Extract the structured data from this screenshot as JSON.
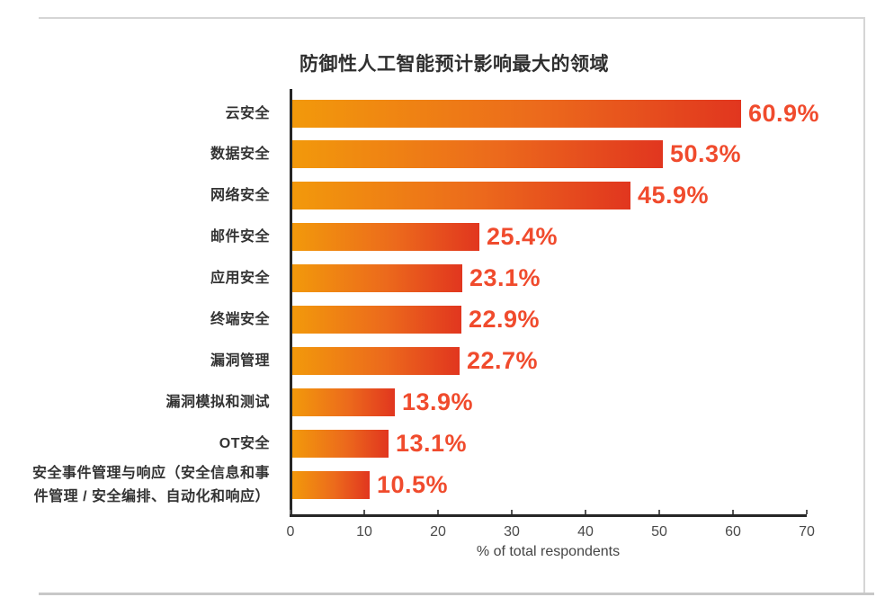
{
  "page": {
    "frame_color": "#d5d5d5"
  },
  "chart_data": {
    "type": "bar",
    "orientation": "horizontal",
    "title": "防御性人工智能预计影响最大的领域",
    "xlabel": "% of total respondents",
    "xlim": [
      0,
      70
    ],
    "xticks": [
      "0",
      "10",
      "20",
      "30",
      "40",
      "50",
      "60",
      "70"
    ],
    "grid": false,
    "legend": "none",
    "categories": [
      "云安全",
      "数据安全",
      "网络安全",
      "邮件安全",
      "应用安全",
      "终端安全",
      "漏洞管理",
      "漏洞模拟和测试",
      "OT安全",
      "安全事件管理与响应（安全信息和事\n件管理 / 安全编排、自动化和响应）"
    ],
    "values": [
      60.9,
      50.3,
      45.9,
      25.4,
      23.1,
      22.9,
      22.7,
      13.9,
      13.1,
      10.5
    ],
    "value_labels": [
      "60.9%",
      "50.3%",
      "45.9%",
      "25.4%",
      "23.1%",
      "22.9%",
      "22.7%",
      "13.9%",
      "13.1%",
      "10.5%"
    ],
    "bar_gradient": [
      "#F2990B",
      "#E1361F"
    ],
    "value_label_color": "#F04B2D",
    "axis_color": "#262626"
  }
}
